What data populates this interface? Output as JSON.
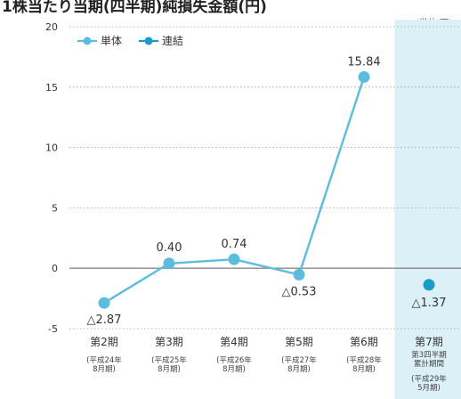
{
  "title": "1株当たり当期(四半期)純損失金額(円)",
  "unit_label": "(単位:円)",
  "colors": {
    "tanntai": "#5bbcdd",
    "renketsu": "#1a9cc8",
    "highlight_bg": "#dcf0f8",
    "axis_zero": "#888888"
  },
  "chart_data": {
    "type": "line",
    "title": "1株当たり当期(四半期)純損失金額(円)",
    "unit": "(単位:円)",
    "ylim": [
      -5,
      20
    ],
    "yticks": [
      20,
      15,
      10,
      5,
      0,
      -5
    ],
    "legend_position": "top-left",
    "categories": [
      "第2期",
      "第3期",
      "第4期",
      "第5期",
      "第6期",
      "第7期"
    ],
    "category_sub": [
      [
        "(平成24年",
        "8月期)"
      ],
      [
        "(平成25年",
        "8月期)"
      ],
      [
        "(平成26年",
        "8月期)"
      ],
      [
        "(平成27年",
        "8月期)"
      ],
      [
        "(平成28年",
        "8月期)"
      ],
      [
        "(平成29年",
        "5月期)"
      ]
    ],
    "category7_extra": [
      "第3四半期",
      "累計期間"
    ],
    "highlight_category": "第7期",
    "series": [
      {
        "name": "単体",
        "values": [
          -2.87,
          0.4,
          0.74,
          -0.53,
          15.84,
          null
        ],
        "labels": [
          "△2.87",
          "0.40",
          "0.74",
          "△0.53",
          "15.84",
          ""
        ]
      },
      {
        "name": "連結",
        "values": [
          null,
          null,
          null,
          null,
          null,
          -1.37
        ],
        "labels": [
          "",
          "",
          "",
          "",
          "",
          "△1.37"
        ]
      }
    ]
  }
}
